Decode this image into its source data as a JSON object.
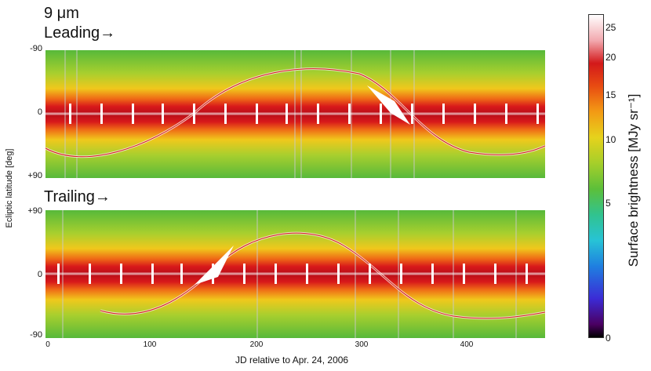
{
  "titles": {
    "wavelength": "9 μm",
    "leading": "Leading→",
    "trailing": "Trailing→"
  },
  "axes": {
    "ylabel": "Ecliptic latitude [deg]",
    "xlabel": "JD relative to Apr. 24, 2006",
    "top_panel_yticks": [
      "-90",
      "0",
      "+90"
    ],
    "bottom_panel_yticks": [
      "+90",
      "0",
      "-90"
    ],
    "xticks": [
      "0",
      "100",
      "200",
      "300",
      "400"
    ]
  },
  "colorbar": {
    "title": "Surface brightness [MJy sr⁻¹]",
    "ticks": [
      "25",
      "20",
      "15",
      "10",
      "5",
      "0"
    ]
  },
  "colors": {
    "band_core": "#c8101a",
    "band_mid": "#e8461a",
    "background": "#79c240",
    "galactic_plane": "#ffffff"
  }
}
